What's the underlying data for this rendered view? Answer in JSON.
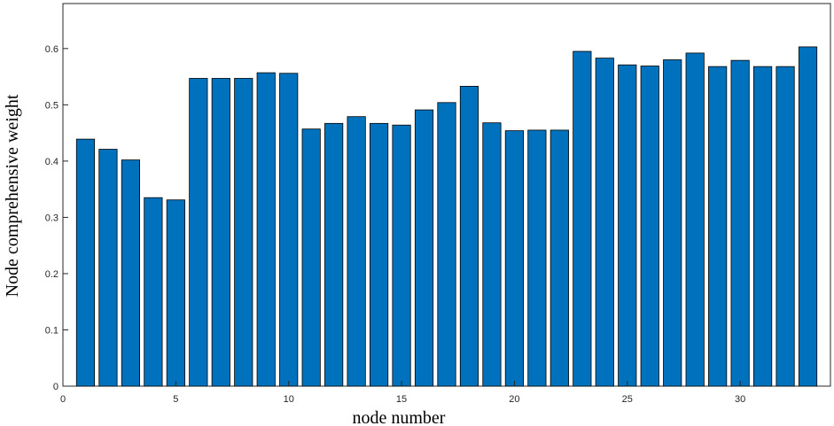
{
  "chart_data": {
    "type": "bar",
    "xlabel": "node number",
    "ylabel": "Node comprehensive weight",
    "xlim": [
      0,
      34
    ],
    "ylim": [
      0,
      0.68
    ],
    "xticks": [
      0,
      5,
      10,
      15,
      20,
      25,
      30
    ],
    "yticks": [
      0,
      0.1,
      0.2,
      0.3,
      0.4,
      0.5,
      0.6
    ],
    "grid": false,
    "bar_color": "#0072BD",
    "categories": [
      1,
      2,
      3,
      4,
      5,
      6,
      7,
      8,
      9,
      10,
      11,
      12,
      13,
      14,
      15,
      16,
      17,
      18,
      19,
      20,
      21,
      22,
      23,
      24,
      25,
      26,
      27,
      28,
      29,
      30,
      31,
      32,
      33
    ],
    "values": [
      0.439,
      0.421,
      0.402,
      0.335,
      0.331,
      0.547,
      0.547,
      0.547,
      0.557,
      0.556,
      0.457,
      0.467,
      0.479,
      0.467,
      0.464,
      0.491,
      0.504,
      0.533,
      0.468,
      0.454,
      0.455,
      0.455,
      0.595,
      0.583,
      0.571,
      0.569,
      0.58,
      0.592,
      0.568,
      0.579,
      0.568,
      0.568,
      0.603
    ]
  }
}
